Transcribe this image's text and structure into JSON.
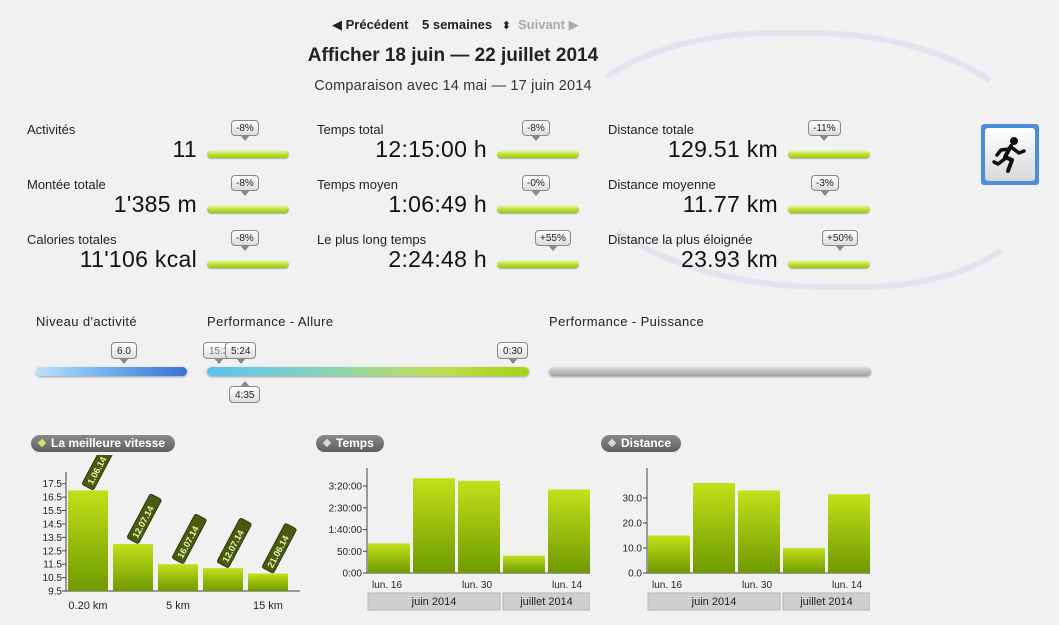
{
  "nav": {
    "prev_label": "◀ Précédent",
    "period_label": "5 semaines",
    "period_arrow": "⬍",
    "next_label": "Suivant ▶"
  },
  "header": {
    "title": "Afficher 18 juin — 22 juillet 2014",
    "subtitle": "Comparaison avec 14 mai — 17 juin 2014"
  },
  "stats": [
    {
      "label": "Activités",
      "value": "11",
      "change": "-8%"
    },
    {
      "label": "Temps total",
      "value": "12:15:00 h",
      "change": "-8%"
    },
    {
      "label": "Distance totale",
      "value": "129.51 km",
      "change": "-11%"
    },
    {
      "label": "Montée totale",
      "value": "1'385 m",
      "change": "-8%"
    },
    {
      "label": "Temps moyen",
      "value": "1:06:49 h",
      "change": "-0%"
    },
    {
      "label": "Distance moyenne",
      "value": "11.77 km",
      "change": "-3%"
    },
    {
      "label": "Calories totales",
      "value": "11'106 kcal",
      "change": "-8%"
    },
    {
      "label": "Le plus long temps",
      "value": "2:24:48 h",
      "change": "+55%"
    },
    {
      "label": "Distance la plus éloignée",
      "value": "23.93 km",
      "change": "+50%"
    }
  ],
  "activity_icon": "running-man-icon",
  "performance": {
    "activity_level_label": "Niveau d'activité",
    "activity_level_value": "6.0",
    "pace_label": "Performance - Allure",
    "pace_values": {
      "min": "15:3",
      "current": "5:24",
      "max": "0:30",
      "below": "4:35"
    },
    "power_label": "Performance - Puissance"
  },
  "colors": {
    "accent_green": "#9ccc10",
    "bar_green_light": "#c3e01a",
    "bar_green_dark": "#6f9a00",
    "header_gray": "#6d6d6d",
    "activity_blue": "#3b6fd6",
    "icon_blue": "#4a8fd8"
  },
  "charts": {
    "speed": {
      "title": "La meilleure vitesse"
    },
    "time": {
      "title": "Temps"
    },
    "distance": {
      "title": "Distance"
    }
  },
  "chart_data": [
    {
      "type": "bar",
      "title": "La meilleure vitesse",
      "yticks": [
        "9.5",
        "10.5",
        "11.5",
        "12.5",
        "13.5",
        "14.5",
        "15.5",
        "16.5",
        "17.5"
      ],
      "ylim": [
        9.5,
        18.0
      ],
      "values": [
        17.0,
        13.0,
        11.5,
        11.2,
        10.8
      ],
      "bar_labels": [
        "1.06.14",
        "12.07.14",
        "16.07.14",
        "12.07.14",
        "21.06.14"
      ],
      "xlabels": [
        {
          "text": "0.20 km",
          "bar": 0
        },
        {
          "text": "5 km",
          "bar": 2
        },
        {
          "text": "15 km",
          "bar": 4
        }
      ]
    },
    {
      "type": "bar",
      "title": "Temps",
      "yticks": [
        "0:00",
        "50:00",
        "1:40:00",
        "2:30:00",
        "3:20:00"
      ],
      "ylim_minutes": [
        0,
        230
      ],
      "values_minutes": [
        68,
        218,
        212,
        40,
        192
      ],
      "xlabels": [
        "lun. 16",
        "lun. 30",
        "lun. 14"
      ],
      "groups": [
        {
          "label": "juin 2014",
          "bars": [
            0,
            2
          ]
        },
        {
          "label": "juillet 2014",
          "bars": [
            3,
            4
          ]
        }
      ]
    },
    {
      "type": "bar",
      "title": "Distance",
      "yticks": [
        "0.0",
        "10.0",
        "20.0",
        "30.0"
      ],
      "ylim": [
        0,
        40
      ],
      "values": [
        15.0,
        36.0,
        33.0,
        10.0,
        31.5
      ],
      "xlabels": [
        "lun. 16",
        "lun. 30",
        "lun. 14"
      ],
      "groups": [
        {
          "label": "juin 2014",
          "bars": [
            0,
            2
          ]
        },
        {
          "label": "juillet 2014",
          "bars": [
            3,
            4
          ]
        }
      ]
    }
  ]
}
